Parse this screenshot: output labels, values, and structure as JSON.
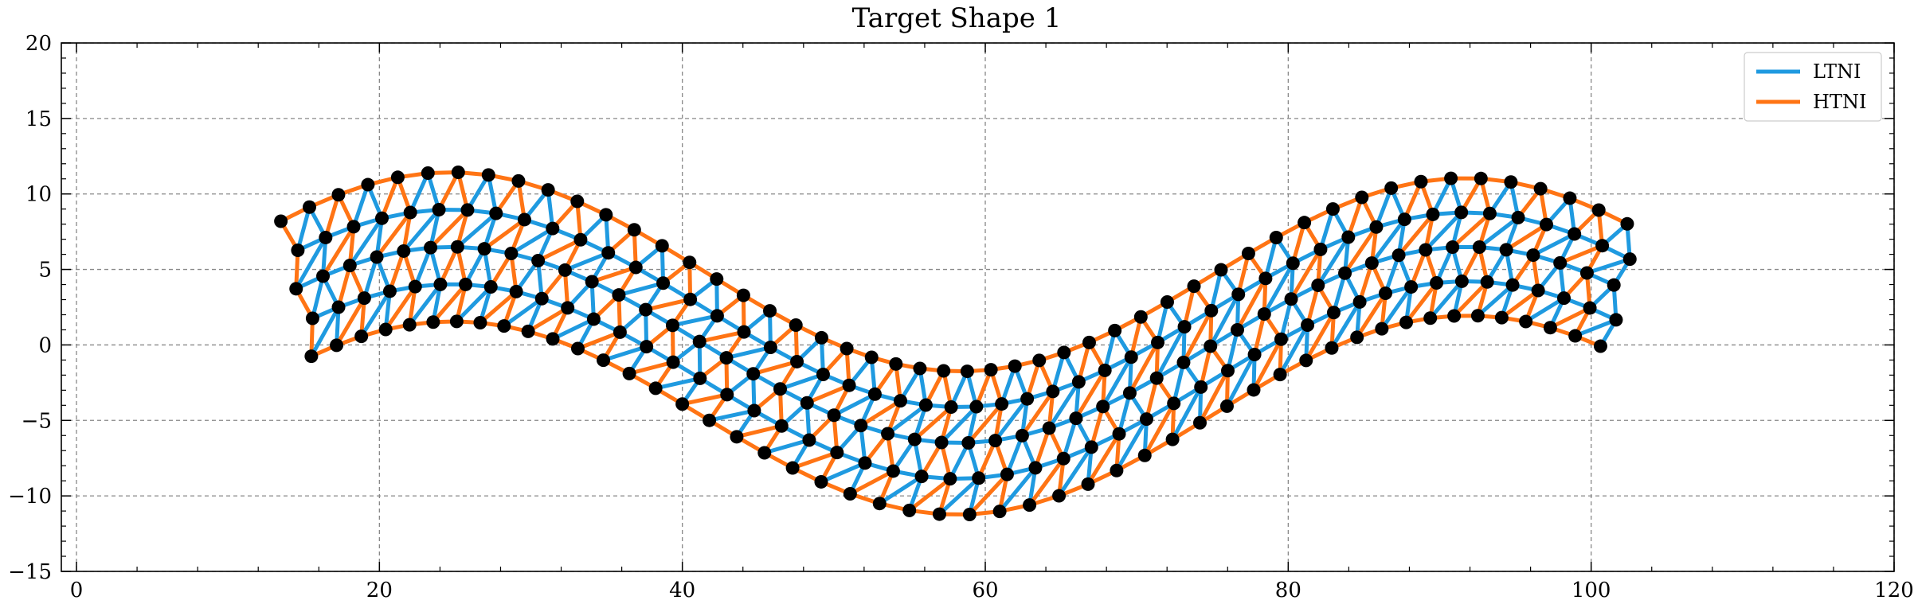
{
  "chart_data": {
    "type": "line",
    "title": "Target Shape 1",
    "xlabel": "",
    "ylabel": "",
    "xlim": [
      -1,
      120
    ],
    "ylim": [
      -15,
      20
    ],
    "xticks": [
      0,
      20,
      40,
      60,
      80,
      100,
      120
    ],
    "xtick_labels": [
      "0",
      "20",
      "40",
      "60",
      "80",
      "100",
      "120"
    ],
    "yticks": [
      -15,
      -10,
      -5,
      0,
      5,
      10,
      15,
      20
    ],
    "ytick_labels": [
      "−15",
      "−10",
      "−5",
      "0",
      "5",
      "10",
      "15",
      "20"
    ],
    "grid": true,
    "legend_position": "top-right",
    "series": [
      {
        "name": "LTNI",
        "color": "#1f9ae0"
      },
      {
        "name": "HTNI",
        "color": "#ff7414"
      }
    ],
    "node_color": "#000000",
    "mesh": {
      "x_start": 14.5,
      "x_end": 101.5,
      "columns": 50,
      "rows": 5,
      "centerline_amplitude": 6.5,
      "centerline_period": 67,
      "centerline_phase_x": 8,
      "band_width": 10,
      "band_width_right": 9
    }
  }
}
